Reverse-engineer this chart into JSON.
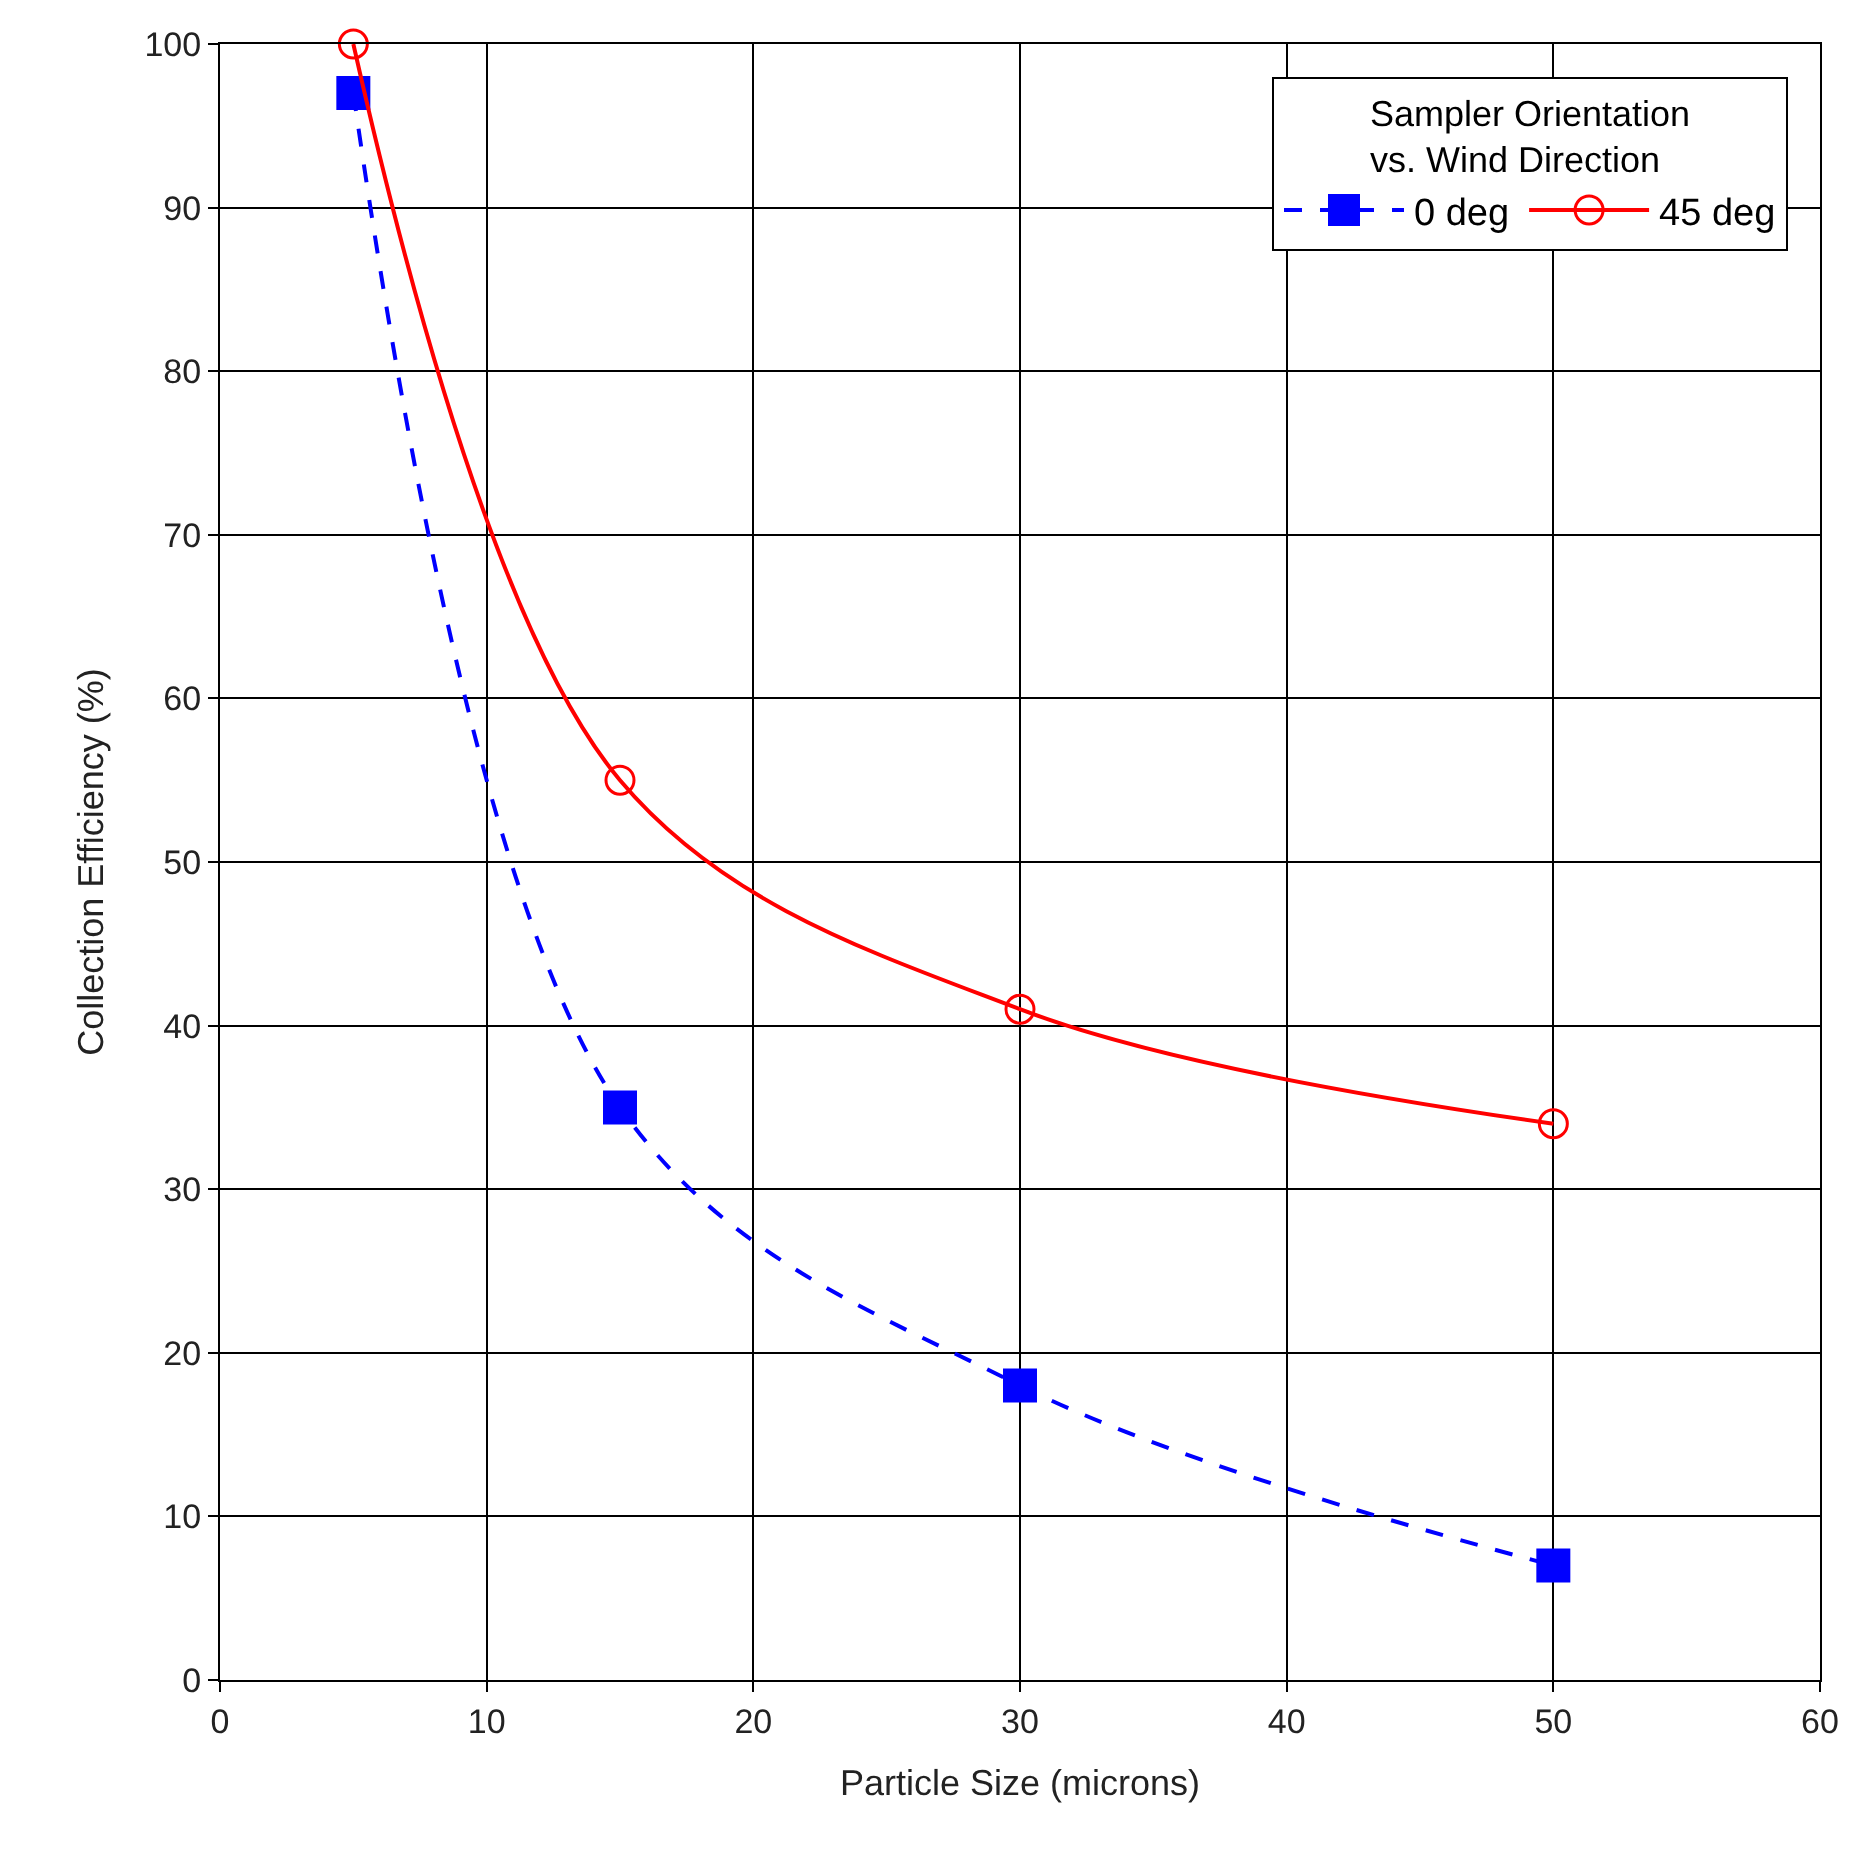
{
  "chart_data": {
    "type": "line",
    "xlabel": "Particle Size (microns)",
    "ylabel": "Collection Efficiency (%)",
    "legend_title": "Sampler Orientation\nvs. Wind Direction",
    "x": [
      5,
      15,
      30,
      50
    ],
    "series": [
      {
        "name": "0 deg",
        "color": "#0000ff",
        "values": [
          97,
          35,
          18,
          7
        ],
        "marker": "square",
        "line_style": "dashed"
      },
      {
        "name": "45 deg",
        "color": "#ff0000",
        "values": [
          100,
          55,
          41,
          34
        ],
        "marker": "circle",
        "line_style": "solid"
      }
    ],
    "xlim": [
      0,
      60
    ],
    "xticks": [
      0,
      10,
      20,
      30,
      40,
      50,
      60
    ],
    "ylim": [
      0,
      100
    ],
    "yticks": [
      0,
      10,
      20,
      30,
      40,
      50,
      60,
      70,
      80,
      90,
      100
    ],
    "grid": true,
    "legend": "top right"
  }
}
